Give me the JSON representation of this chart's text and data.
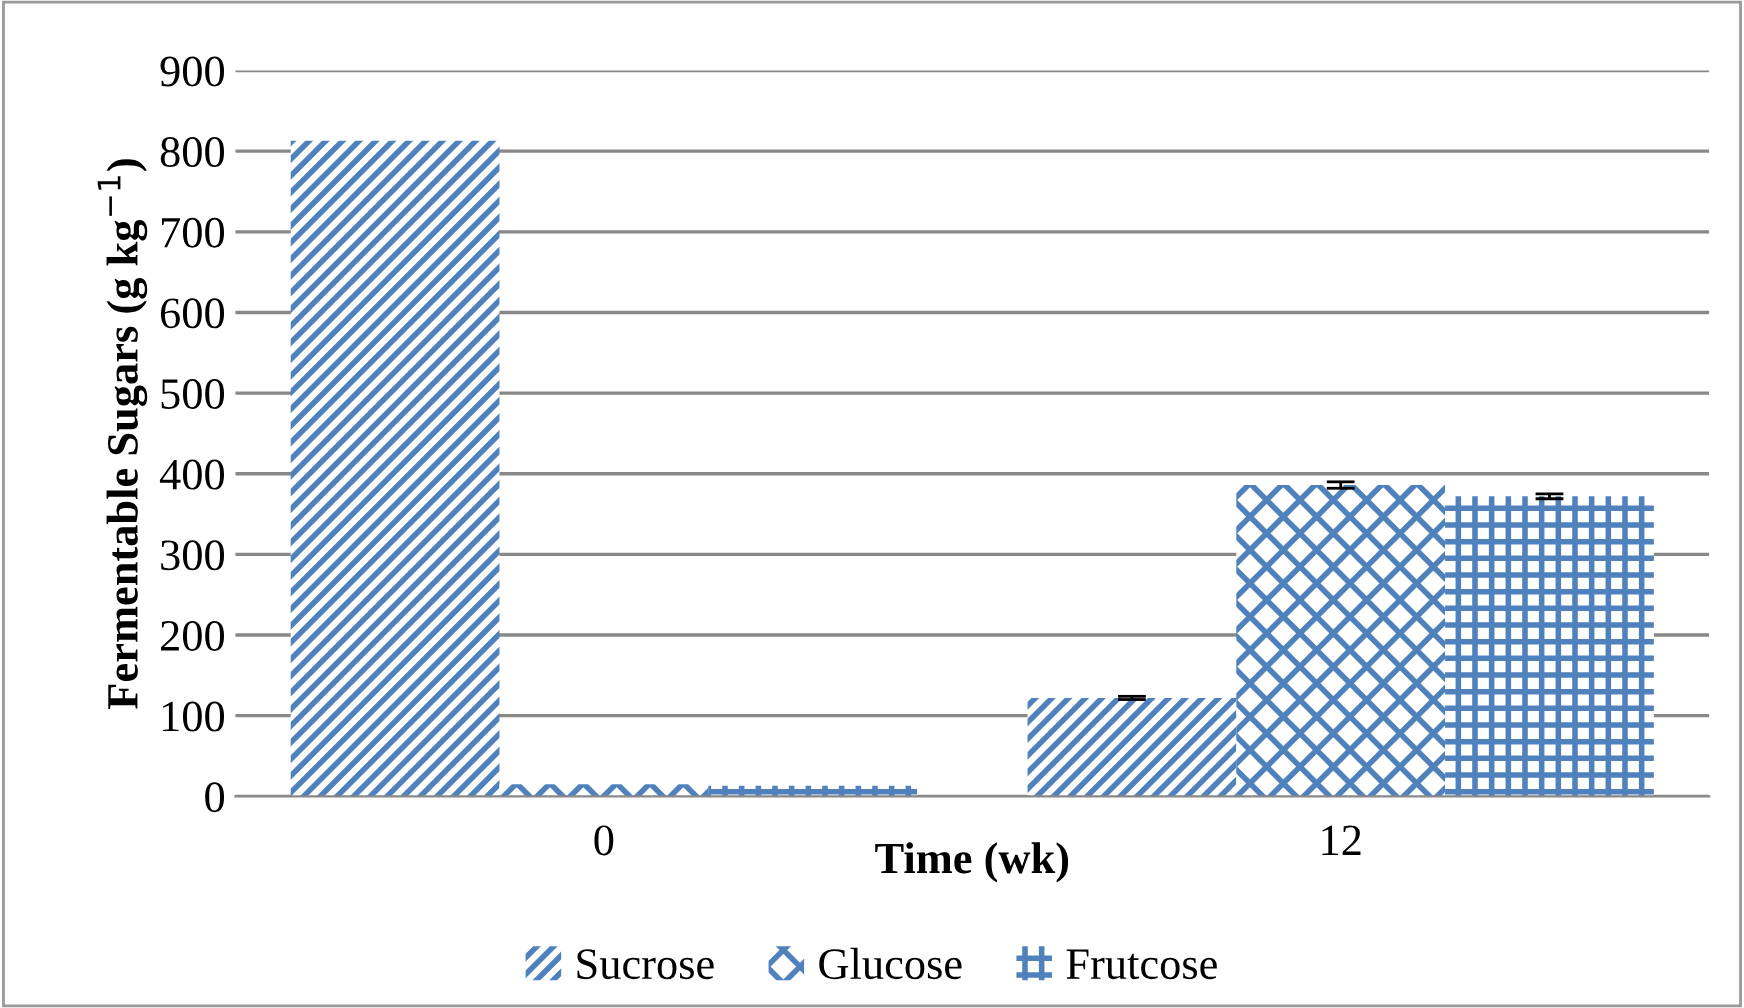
{
  "chart_data": {
    "type": "bar",
    "xlabel": "Time (wk)",
    "ylabel": "Fermentable Sugars (g kg$^{−1}$)",
    "categories": [
      "0",
      "12"
    ],
    "series": [
      {
        "name": "Sucrose",
        "color": "#4f81bd",
        "values": [
          813,
          122
        ],
        "errors": [
          null,
          2
        ]
      },
      {
        "name": "Glucose",
        "color": "#4f81bd",
        "values": [
          15,
          386
        ],
        "errors": [
          null,
          4
        ]
      },
      {
        "name": "Frutcose",
        "color": "#4f81bd",
        "values": [
          13,
          372
        ],
        "errors": [
          null,
          3
        ]
      }
    ],
    "ylim": [
      0,
      900
    ],
    "yticks": [
      0,
      100,
      200,
      300,
      400,
      500,
      600,
      700,
      800,
      900
    ],
    "grid": "y",
    "legend": "bottom"
  }
}
